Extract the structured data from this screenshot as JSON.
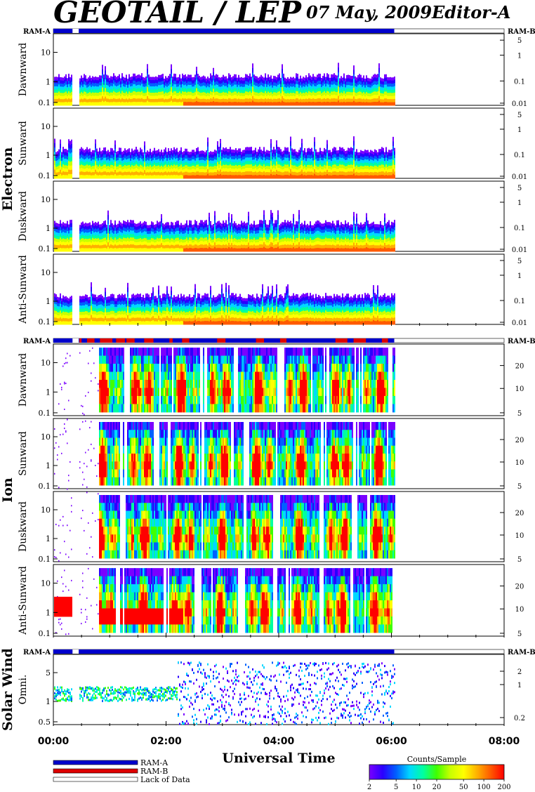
{
  "header": {
    "instrument": "GEOTAIL / LEP",
    "date": "07 May, 2009",
    "editor": "Editor-A"
  },
  "chart_data": {
    "type": "heatmap",
    "time_axis": {
      "title": "Universal Time",
      "ticks": [
        "00:00",
        "02:00",
        "04:00",
        "06:00",
        "08:00"
      ],
      "range_hours": [
        0,
        8
      ],
      "data_end_hours": 6.05
    },
    "mode_labels": {
      "left": "RAM-A",
      "right": "RAM-B"
    },
    "groups": [
      {
        "name": "Electron",
        "panels": [
          {
            "label": "Dawnward",
            "left_ticks": [
              "10",
              "1",
              "0.1"
            ],
            "right_ticks": [
              "5",
              "1",
              "0.1",
              "0.01"
            ]
          },
          {
            "label": "Sunward",
            "left_ticks": [
              "10",
              "1",
              "0.1"
            ],
            "right_ticks": [
              "5",
              "1",
              "0.1",
              "0.01"
            ]
          },
          {
            "label": "Duskward",
            "left_ticks": [
              "10",
              "1",
              "0.1"
            ],
            "right_ticks": [
              "5",
              "1",
              "0.1",
              "0.01"
            ]
          },
          {
            "label": "Anti-Sunward",
            "left_ticks": [
              "10",
              "1",
              "0.1"
            ],
            "right_ticks": [
              "5",
              "1",
              "0.1",
              "0.01"
            ]
          }
        ]
      },
      {
        "name": "Ion",
        "panels": [
          {
            "label": "Dawnward",
            "left_ticks": [
              "10",
              "1",
              "0.1"
            ],
            "right_ticks": [
              "20",
              "10",
              "5"
            ]
          },
          {
            "label": "Sunward",
            "left_ticks": [
              "10",
              "1",
              "0.1"
            ],
            "right_ticks": [
              "20",
              "10",
              "5"
            ]
          },
          {
            "label": "Duskward",
            "left_ticks": [
              "10",
              "1",
              "0.1"
            ],
            "right_ticks": [
              "20",
              "10",
              "5"
            ]
          },
          {
            "label": "Anti-Sunward",
            "left_ticks": [
              "10",
              "1",
              "0.1"
            ],
            "right_ticks": [
              "20",
              "10",
              "5"
            ]
          }
        ]
      },
      {
        "name": "Solar Wind",
        "panels": [
          {
            "label": "Omni.",
            "left_ticks": [
              "5",
              "1",
              "0.5"
            ],
            "right_ticks": [
              "2",
              "1",
              "0.2"
            ]
          }
        ]
      }
    ],
    "legend": {
      "items": [
        {
          "label": "RAM-A",
          "color": "#0000cc"
        },
        {
          "label": "RAM-B",
          "color": "#dd0000"
        },
        {
          "label": "Lack of Data",
          "color": "#ffffff"
        }
      ]
    },
    "colorbar": {
      "title": "Counts/Sample",
      "ticks": [
        "2",
        "5",
        "10",
        "20",
        "50",
        "100",
        "200"
      ],
      "range": [
        2,
        200
      ],
      "scale": "log",
      "colors": [
        "#7a00ff",
        "#2a00ff",
        "#0060ff",
        "#00d8ff",
        "#00ffa0",
        "#40ff00",
        "#c8ff00",
        "#ffff00",
        "#ffb000",
        "#ff5a00",
        "#ff0000"
      ]
    }
  }
}
